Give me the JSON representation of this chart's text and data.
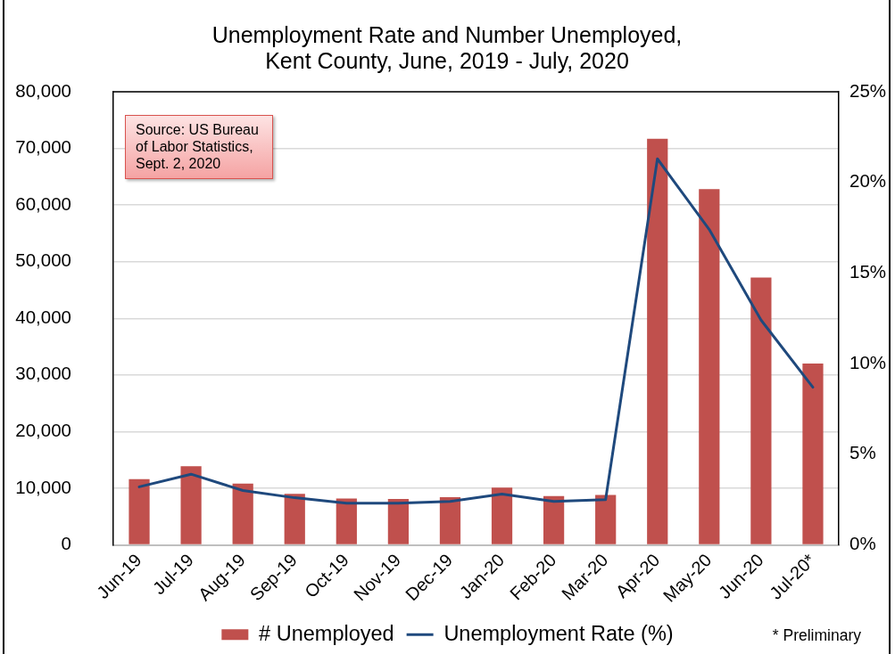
{
  "chart_data": {
    "type": "bar",
    "title": "Unemployment Rate and Number Unemployed, Kent County, June, 2019 - July, 2020",
    "categories": [
      "Jun-19",
      "Jul-19",
      "Aug-19",
      "Sep-19",
      "Oct-19",
      "Nov-19",
      "Dec-19",
      "Jan-20",
      "Feb-20",
      "Mar-20",
      "Apr-20",
      "May-20",
      "Jun-20",
      "Jul-20*"
    ],
    "series": [
      {
        "name": "# Unemployed",
        "color": "#c0504d",
        "values": [
          11600,
          13900,
          10800,
          9000,
          8200,
          8100,
          8400,
          10100,
          8600,
          8800,
          71700,
          62800,
          47200,
          32000
        ]
      },
      {
        "name": "Unemployment Rate (%)",
        "type": "line",
        "axis": "y2",
        "color": "#1f497d",
        "values": [
          3.2,
          3.9,
          3.0,
          2.6,
          2.3,
          2.3,
          2.4,
          2.8,
          2.4,
          2.5,
          21.3,
          17.4,
          12.4,
          8.7
        ]
      }
    ],
    "ylim": [
      0,
      80000
    ],
    "yticks": [
      0,
      {
        "value": 10000,
        "label": "10,000"
      },
      {
        "value": 20000,
        "label": "20,000"
      },
      {
        "value": 30000,
        "label": "30,000"
      },
      {
        "value": 40000,
        "label": "40,000"
      },
      {
        "value": 50000,
        "label": "50,000"
      },
      {
        "value": 60000,
        "label": "60,000"
      },
      {
        "value": 70000,
        "label": "70,000"
      },
      {
        "value": 80000,
        "label": "80,000"
      }
    ],
    "y2lim": [
      0,
      25
    ],
    "y2ticks": [
      {
        "value": 0,
        "label": "0%"
      },
      {
        "value": 5,
        "label": "5%"
      },
      {
        "value": 10,
        "label": "10%"
      },
      {
        "value": 15,
        "label": "15%"
      },
      {
        "value": 20,
        "label": "20%"
      },
      {
        "value": 25,
        "label": "25%"
      }
    ],
    "grid": "y",
    "legend": "bottom",
    "marker": "none",
    "line_style": "solid",
    "annotations": [
      "Source: US Bureau of Labor Statistics, Sept. 2, 2020",
      "* Preliminary"
    ]
  }
}
